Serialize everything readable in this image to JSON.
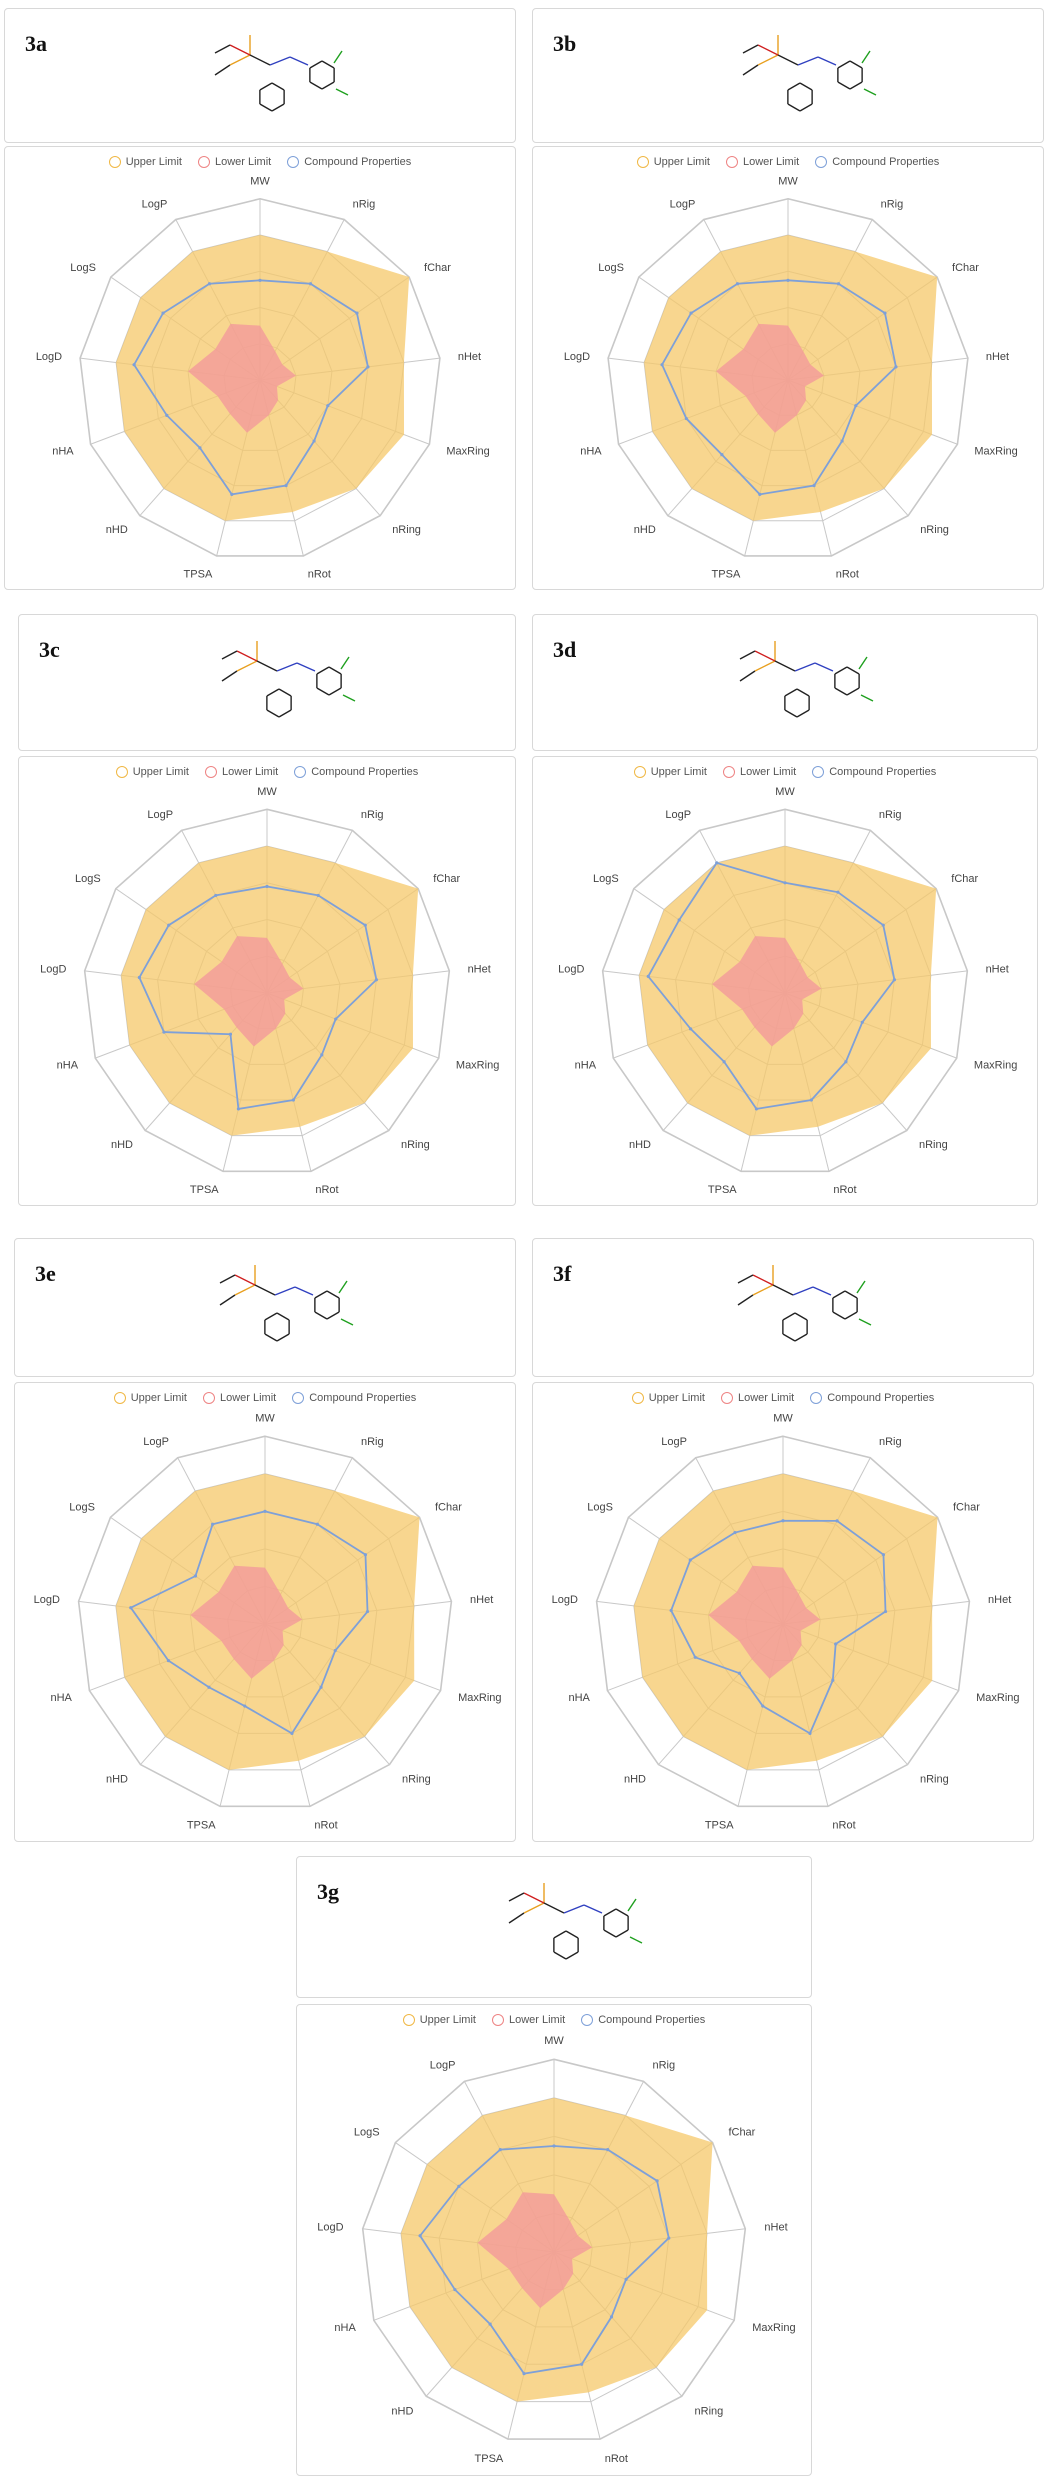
{
  "legend": {
    "upper": "Upper Limit",
    "lower": "Lower Limit",
    "compound": "Compound Properties"
  },
  "colors": {
    "upper_fill": "#f6c86a",
    "upper_stroke": "#f0b845",
    "lower_fill": "#f29a9a",
    "lower_stroke": "#ee8484",
    "compound_stroke": "#7ea0d8",
    "grid": "#c8c8c8"
  },
  "chart_data": [
    {
      "type": "radar",
      "panel": "3a",
      "title": "3a",
      "axes": [
        "MW",
        "nRig",
        "fChar",
        "nHet",
        "MaxRing",
        "nRing",
        "nRot",
        "TPSA",
        "nHD",
        "nHA",
        "LogD",
        "LogS",
        "LogP"
      ],
      "series": [
        {
          "name": "Upper Limit",
          "values": [
            0.8,
            0.8,
            1.0,
            0.8,
            0.85,
            0.8,
            0.75,
            0.8,
            0.8,
            0.8,
            0.8,
            0.8,
            0.8
          ]
        },
        {
          "name": "Lower Limit",
          "values": [
            0.3,
            0.18,
            0.15,
            0.2,
            0.1,
            0.15,
            0.2,
            0.3,
            0.25,
            0.25,
            0.4,
            0.3,
            0.35
          ]
        },
        {
          "name": "Compound Properties",
          "values": [
            0.55,
            0.6,
            0.65,
            0.6,
            0.4,
            0.45,
            0.6,
            0.65,
            0.5,
            0.55,
            0.7,
            0.65,
            0.6
          ]
        }
      ]
    },
    {
      "type": "radar",
      "panel": "3b",
      "title": "3b",
      "axes": [
        "MW",
        "nRig",
        "fChar",
        "nHet",
        "MaxRing",
        "nRing",
        "nRot",
        "TPSA",
        "nHD",
        "nHA",
        "LogD",
        "LogS",
        "LogP"
      ],
      "series": [
        {
          "name": "Upper Limit",
          "values": [
            0.8,
            0.8,
            1.0,
            0.8,
            0.85,
            0.8,
            0.75,
            0.8,
            0.8,
            0.8,
            0.8,
            0.8,
            0.8
          ]
        },
        {
          "name": "Lower Limit",
          "values": [
            0.3,
            0.18,
            0.15,
            0.2,
            0.1,
            0.15,
            0.2,
            0.3,
            0.25,
            0.25,
            0.4,
            0.3,
            0.35
          ]
        },
        {
          "name": "Compound Properties",
          "values": [
            0.55,
            0.6,
            0.65,
            0.6,
            0.4,
            0.45,
            0.6,
            0.65,
            0.55,
            0.6,
            0.7,
            0.65,
            0.6
          ]
        }
      ]
    },
    {
      "type": "radar",
      "panel": "3c",
      "title": "3c",
      "axes": [
        "MW",
        "nRig",
        "fChar",
        "nHet",
        "MaxRing",
        "nRing",
        "nRot",
        "TPSA",
        "nHD",
        "nHA",
        "LogD",
        "LogS",
        "LogP"
      ],
      "series": [
        {
          "name": "Upper Limit",
          "values": [
            0.8,
            0.8,
            1.0,
            0.8,
            0.85,
            0.8,
            0.75,
            0.8,
            0.8,
            0.8,
            0.8,
            0.8,
            0.8
          ]
        },
        {
          "name": "Lower Limit",
          "values": [
            0.3,
            0.18,
            0.15,
            0.2,
            0.1,
            0.15,
            0.2,
            0.3,
            0.25,
            0.25,
            0.4,
            0.3,
            0.35
          ]
        },
        {
          "name": "Compound Properties",
          "values": [
            0.58,
            0.6,
            0.65,
            0.6,
            0.4,
            0.45,
            0.6,
            0.65,
            0.3,
            0.6,
            0.7,
            0.65,
            0.6
          ]
        }
      ]
    },
    {
      "type": "radar",
      "panel": "3d",
      "title": "3d",
      "axes": [
        "MW",
        "nRig",
        "fChar",
        "nHet",
        "MaxRing",
        "nRing",
        "nRot",
        "TPSA",
        "nHD",
        "nHA",
        "LogD",
        "LogS",
        "LogP"
      ],
      "series": [
        {
          "name": "Upper Limit",
          "values": [
            0.8,
            0.8,
            1.0,
            0.8,
            0.85,
            0.8,
            0.75,
            0.8,
            0.8,
            0.8,
            0.8,
            0.8,
            0.8
          ]
        },
        {
          "name": "Lower Limit",
          "values": [
            0.3,
            0.18,
            0.15,
            0.2,
            0.1,
            0.15,
            0.2,
            0.3,
            0.25,
            0.25,
            0.4,
            0.3,
            0.35
          ]
        },
        {
          "name": "Compound Properties",
          "values": [
            0.6,
            0.62,
            0.65,
            0.6,
            0.45,
            0.5,
            0.6,
            0.65,
            0.5,
            0.55,
            0.75,
            0.7,
            0.8
          ]
        }
      ]
    },
    {
      "type": "radar",
      "panel": "3e",
      "title": "3e",
      "axes": [
        "MW",
        "nRig",
        "fChar",
        "nHet",
        "MaxRing",
        "nRing",
        "nRot",
        "TPSA",
        "nHD",
        "nHA",
        "LogD",
        "LogS",
        "LogP"
      ],
      "series": [
        {
          "name": "Upper Limit",
          "values": [
            0.8,
            0.8,
            1.0,
            0.8,
            0.85,
            0.8,
            0.75,
            0.8,
            0.8,
            0.8,
            0.8,
            0.8,
            0.8
          ]
        },
        {
          "name": "Lower Limit",
          "values": [
            0.3,
            0.18,
            0.15,
            0.2,
            0.1,
            0.15,
            0.2,
            0.3,
            0.25,
            0.25,
            0.4,
            0.3,
            0.35
          ]
        },
        {
          "name": "Compound Properties",
          "values": [
            0.6,
            0.6,
            0.65,
            0.55,
            0.4,
            0.45,
            0.6,
            0.45,
            0.45,
            0.55,
            0.72,
            0.45,
            0.6
          ]
        }
      ]
    },
    {
      "type": "radar",
      "panel": "3f",
      "title": "3f",
      "axes": [
        "MW",
        "nRig",
        "fChar",
        "nHet",
        "MaxRing",
        "nRing",
        "nRot",
        "TPSA",
        "nHD",
        "nHA",
        "LogD",
        "LogS",
        "LogP"
      ],
      "series": [
        {
          "name": "Upper Limit",
          "values": [
            0.8,
            0.8,
            1.0,
            0.8,
            0.85,
            0.8,
            0.75,
            0.8,
            0.8,
            0.8,
            0.8,
            0.8,
            0.8
          ]
        },
        {
          "name": "Lower Limit",
          "values": [
            0.3,
            0.18,
            0.15,
            0.2,
            0.1,
            0.15,
            0.2,
            0.3,
            0.25,
            0.25,
            0.4,
            0.3,
            0.35
          ]
        },
        {
          "name": "Compound Properties",
          "values": [
            0.55,
            0.62,
            0.65,
            0.55,
            0.3,
            0.4,
            0.6,
            0.45,
            0.35,
            0.5,
            0.6,
            0.6,
            0.55
          ]
        }
      ]
    },
    {
      "type": "radar",
      "panel": "3g",
      "title": "3g",
      "axes": [
        "MW",
        "nRig",
        "fChar",
        "nHet",
        "MaxRing",
        "nRing",
        "nRot",
        "TPSA",
        "nHD",
        "nHA",
        "LogD",
        "LogS",
        "LogP"
      ],
      "series": [
        {
          "name": "Upper Limit",
          "values": [
            0.8,
            0.8,
            1.0,
            0.8,
            0.85,
            0.8,
            0.75,
            0.8,
            0.8,
            0.8,
            0.8,
            0.8,
            0.8
          ]
        },
        {
          "name": "Lower Limit",
          "values": [
            0.3,
            0.18,
            0.15,
            0.2,
            0.1,
            0.15,
            0.2,
            0.3,
            0.25,
            0.25,
            0.4,
            0.3,
            0.35
          ]
        },
        {
          "name": "Compound Properties",
          "values": [
            0.55,
            0.6,
            0.65,
            0.6,
            0.4,
            0.45,
            0.6,
            0.65,
            0.5,
            0.55,
            0.7,
            0.6,
            0.6
          ]
        }
      ]
    }
  ]
}
